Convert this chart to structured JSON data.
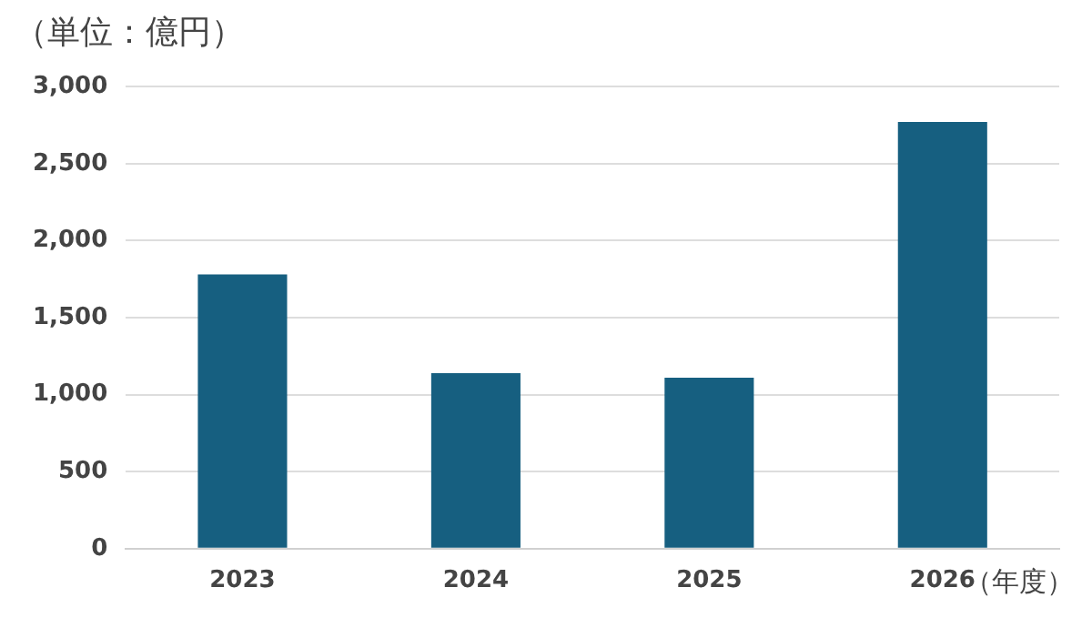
{
  "chart_data": {
    "type": "bar",
    "title": "（単位：億円）",
    "xlabel": "（年度）",
    "categories": [
      "2023",
      "2024",
      "2025",
      "2026"
    ],
    "values": [
      1780,
      1140,
      1110,
      2770
    ],
    "color": "#165f80",
    "ylim": [
      0,
      3000
    ],
    "yticks": [
      {
        "value": 0,
        "label": "0"
      },
      {
        "value": 500,
        "label": "500"
      },
      {
        "value": 1000,
        "label": "1,000"
      },
      {
        "value": 1500,
        "label": "1,500"
      },
      {
        "value": 2000,
        "label": "2,000"
      },
      {
        "value": 2500,
        "label": "2,500"
      },
      {
        "value": 3000,
        "label": "3,000"
      }
    ],
    "grid": "y",
    "legend": false
  }
}
